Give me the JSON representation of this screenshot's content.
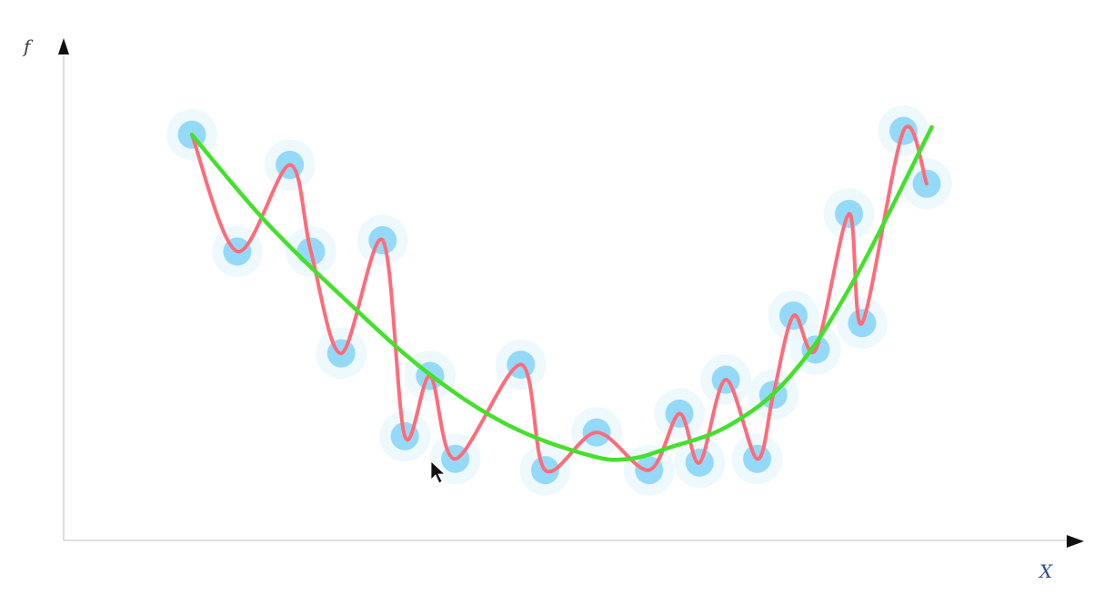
{
  "axes": {
    "y_label": "f",
    "x_label": "X"
  },
  "colors": {
    "points": "#8ed8f8",
    "overfit_curve": "#ff6b7a",
    "fit_curve": "#44e02c",
    "axis": "#c9c9c9",
    "arrow": "#111111"
  },
  "chart_data": {
    "type": "scatter",
    "title": "",
    "xlabel": "X",
    "ylabel": "f",
    "xlim": [
      0,
      100
    ],
    "ylim": [
      0,
      100
    ],
    "grid": false,
    "points": [
      {
        "x": 12.7,
        "y": 98
      },
      {
        "x": 17.2,
        "y": 67
      },
      {
        "x": 22.4,
        "y": 90
      },
      {
        "x": 24.5,
        "y": 67
      },
      {
        "x": 27.5,
        "y": 40
      },
      {
        "x": 31.6,
        "y": 70
      },
      {
        "x": 33.8,
        "y": 18
      },
      {
        "x": 36.3,
        "y": 34
      },
      {
        "x": 38.8,
        "y": 12
      },
      {
        "x": 45.3,
        "y": 37
      },
      {
        "x": 47.7,
        "y": 9
      },
      {
        "x": 52.8,
        "y": 19
      },
      {
        "x": 58.0,
        "y": 9
      },
      {
        "x": 61.0,
        "y": 24
      },
      {
        "x": 63.0,
        "y": 11
      },
      {
        "x": 65.6,
        "y": 33
      },
      {
        "x": 68.7,
        "y": 12
      },
      {
        "x": 70.3,
        "y": 29
      },
      {
        "x": 72.3,
        "y": 50
      },
      {
        "x": 74.5,
        "y": 41
      },
      {
        "x": 77.8,
        "y": 77
      },
      {
        "x": 79.1,
        "y": 48
      },
      {
        "x": 83.2,
        "y": 99
      },
      {
        "x": 85.5,
        "y": 85
      }
    ],
    "series": [
      {
        "type": "line",
        "role": "overfit",
        "interpolates": "points"
      },
      {
        "type": "line",
        "role": "fit",
        "x": [
          12.7,
          20,
          28,
          36,
          44,
          52,
          56,
          60,
          66,
          72,
          78,
          86
        ],
        "y": [
          98,
          75,
          54,
          35,
          21,
          13,
          12,
          15,
          21,
          34,
          58,
          100
        ]
      }
    ]
  }
}
